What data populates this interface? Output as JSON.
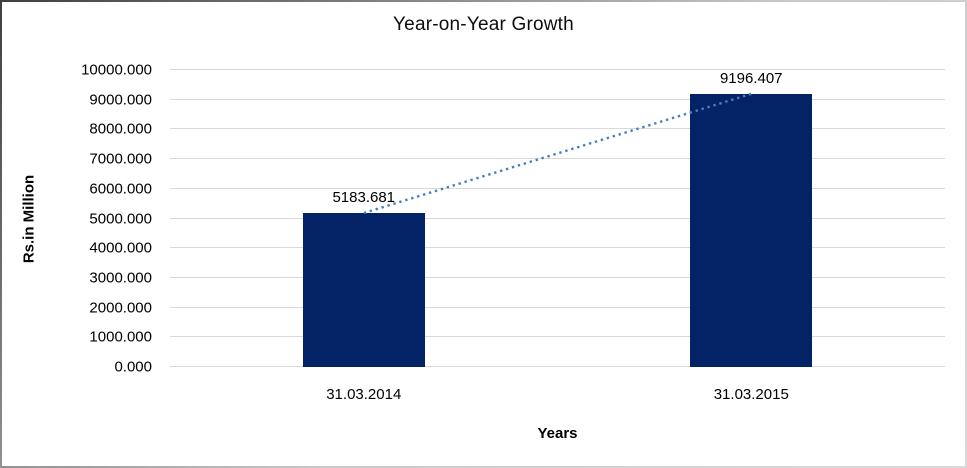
{
  "chart_data": {
    "type": "bar",
    "title": "Year-on-Year Growth",
    "xlabel": "Years",
    "ylabel": "Rs.in Million",
    "categories": [
      "31.03.2014",
      "31.03.2015"
    ],
    "series": [
      {
        "name": "Growth",
        "values": [
          5183.681,
          9196.407
        ]
      }
    ],
    "values": [
      5183.681,
      9196.407
    ],
    "value_labels": [
      "5183.681",
      "9196.407"
    ],
    "ylim": [
      0,
      10000
    ],
    "ytick_step": 1000,
    "ytick_labels": [
      "0.000",
      "1000.000",
      "2000.000",
      "3000.000",
      "4000.000",
      "5000.000",
      "6000.000",
      "7000.000",
      "8000.000",
      "9000.000",
      "10000.000"
    ],
    "grid": true,
    "legend": "none",
    "trendline": {
      "style": "dotted",
      "connects": "bar tops"
    },
    "colors": {
      "bar": "#032366",
      "trendline": "#4a7ebb",
      "gridline": "#d9d9d9",
      "text": "#000000"
    }
  }
}
